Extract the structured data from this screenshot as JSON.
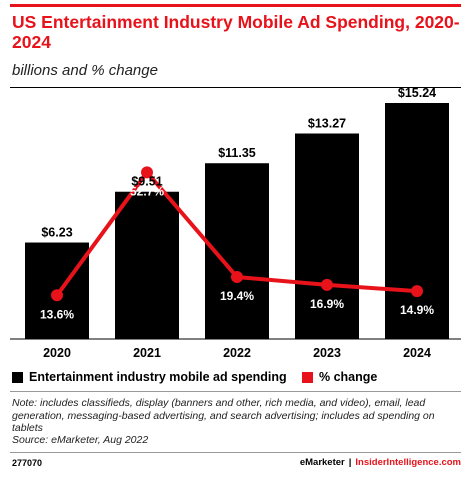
{
  "header": {
    "title": "US Entertainment Industry Mobile Ad Spending, 2020-2024",
    "subtitle": "billions and % change"
  },
  "chart_data": {
    "type": "bar",
    "categories": [
      "2020",
      "2021",
      "2022",
      "2023",
      "2024"
    ],
    "series": [
      {
        "name": "Entertainment industry mobile ad spending",
        "type": "bar",
        "values": [
          6.23,
          9.51,
          11.35,
          13.27,
          15.24
        ],
        "labels": [
          "$6.23",
          "$9.51",
          "$11.35",
          "$13.27",
          "$15.24"
        ],
        "color": "#000000"
      },
      {
        "name": "% change",
        "type": "line",
        "values": [
          13.6,
          52.7,
          19.4,
          16.9,
          14.9
        ],
        "labels": [
          "13.6%",
          "52.7%",
          "19.4%",
          "16.9%",
          "14.9%"
        ],
        "color": "#e8121b"
      }
    ],
    "bar_axis_max": 15.24,
    "line_axis_range": [
      0,
      70
    ],
    "legend_position": "bottom-left",
    "grid": false
  },
  "legend": {
    "items": [
      {
        "label": "Entertainment industry mobile ad spending",
        "color": "#000000"
      },
      {
        "label": "% change",
        "color": "#e8121b"
      }
    ]
  },
  "footer": {
    "note": "Note: includes classifieds, display (banners and other, rich media, and video), email, lead generation, messaging-based advertising, and search advertising; includes ad spending on tablets",
    "source": "Source: eMarketer, Aug 2022",
    "chart_id": "277070",
    "brand_left": "eMarketer",
    "brand_sep": "|",
    "brand_right": "InsiderIntelligence.com"
  },
  "colors": {
    "accent": "#e8121b",
    "bar": "#000000"
  }
}
